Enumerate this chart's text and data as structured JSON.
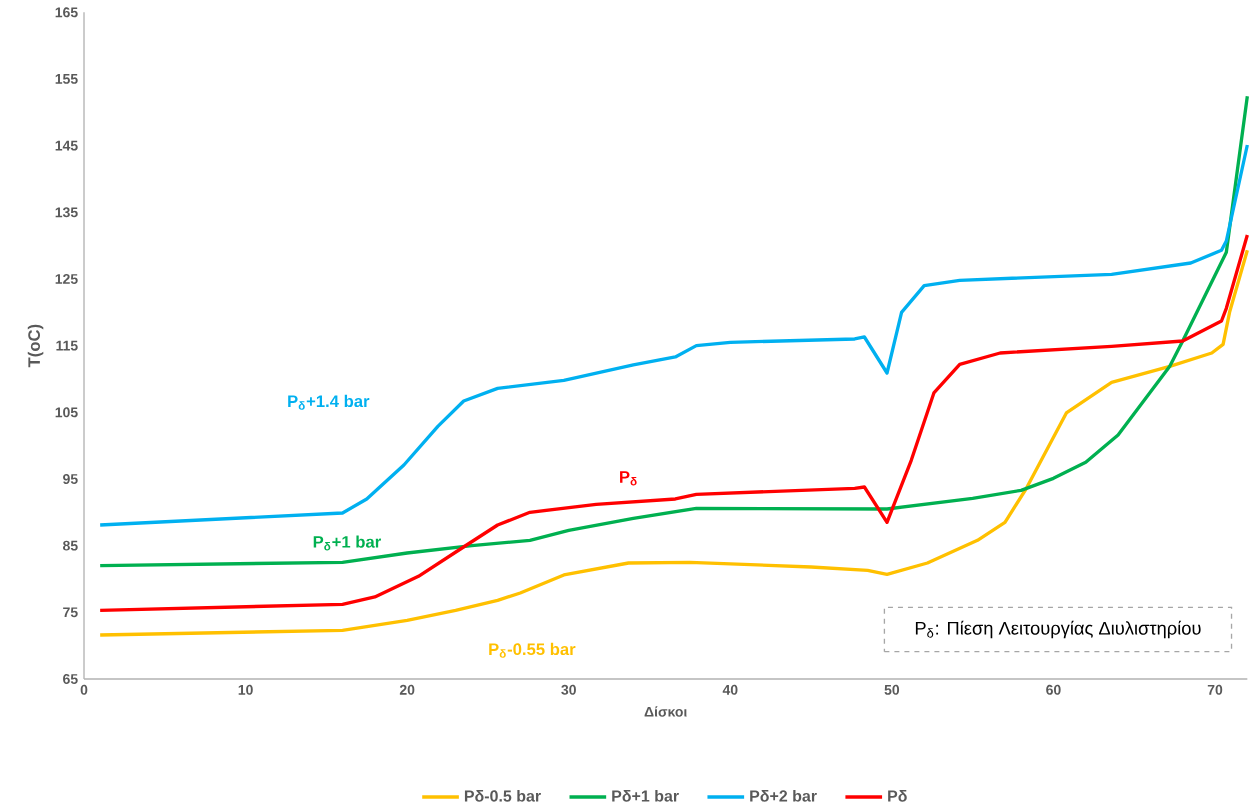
{
  "chart_data": {
    "type": "line",
    "xlabel": "Δίσκοι",
    "ylabel": "T(oC)",
    "xlim": [
      0,
      72
    ],
    "xticks": [
      0,
      10,
      20,
      30,
      40,
      50,
      60,
      70
    ],
    "ylim": [
      65,
      165
    ],
    "yticks": [
      65,
      75,
      85,
      95,
      105,
      115,
      125,
      135,
      145,
      155,
      165
    ],
    "legend": "bottom",
    "series": [
      {
        "name": "Pδ-0.5 bar",
        "color": "#ffc000",
        "x": [
          1,
          16,
          20,
          23,
          25.6,
          27,
          29.7,
          33.7,
          37.5,
          45,
          48.5,
          49.7,
          52.2,
          55.3,
          57,
          58.3,
          60.8,
          63.6,
          67.2,
          69.8,
          70.5,
          70.9,
          72
        ],
        "values": [
          71.6,
          72.3,
          73.8,
          75.3,
          76.8,
          77.9,
          80.6,
          82.4,
          82.5,
          81.8,
          81.3,
          80.7,
          82.4,
          85.8,
          88.5,
          93.5,
          104.9,
          109.5,
          111.9,
          113.9,
          115.2,
          120,
          129.3
        ]
      },
      {
        "name": "Pδ+1 bar",
        "color": "#00b050",
        "x": [
          1,
          16,
          20,
          24,
          27.6,
          30,
          34,
          37.9,
          49.7,
          55,
          58,
          60,
          62,
          64,
          67.2,
          68,
          70.7,
          72
        ],
        "values": [
          82,
          82.5,
          83.9,
          85,
          85.8,
          87.3,
          89.1,
          90.6,
          90.5,
          92.1,
          93.3,
          95.1,
          97.5,
          101.6,
          111.9,
          115.7,
          129,
          152.4
        ]
      },
      {
        "name": "Pδ+2 bar",
        "color": "#00b0f0",
        "x": [
          1,
          16,
          17.5,
          19.8,
          21.9,
          23.5,
          25.6,
          29.7,
          34,
          36.6,
          37.9,
          40,
          47.7,
          48.3,
          49.7,
          50.6,
          52,
          54.2,
          63.6,
          68.5,
          70.4,
          70.7,
          72
        ],
        "values": [
          88.1,
          89.9,
          92,
          97.1,
          102.9,
          106.7,
          108.6,
          109.8,
          112.1,
          113.3,
          115,
          115.5,
          116,
          116.3,
          110.9,
          120,
          124,
          124.8,
          125.7,
          127.4,
          129.3,
          130.7,
          145.1
        ]
      },
      {
        "name": "Pδ",
        "color": "#ff0000",
        "x": [
          1,
          16,
          18,
          20.7,
          23.3,
          25.6,
          27.6,
          31.7,
          36.6,
          37.9,
          47.7,
          48.3,
          49.7,
          51.2,
          52.6,
          54.2,
          56.7,
          63.6,
          68,
          70.4,
          70.7,
          72
        ],
        "values": [
          75.3,
          76.2,
          77.3,
          80.4,
          84.5,
          88.1,
          90,
          91.2,
          92,
          92.7,
          93.6,
          93.8,
          88.5,
          97.8,
          107.9,
          112.2,
          113.9,
          114.9,
          115.7,
          118.7,
          120.6,
          131.6
        ]
      }
    ],
    "annotations": [
      "P$_{δ}$+1.4 bar",
      "P$_{δ}$",
      "P$_{δ}$+1 bar",
      "P$_{δ}$-0.55 bar",
      "P$_{δ}$: Πίεση Λειτουργίας  Διυλιστηρίου"
    ]
  }
}
